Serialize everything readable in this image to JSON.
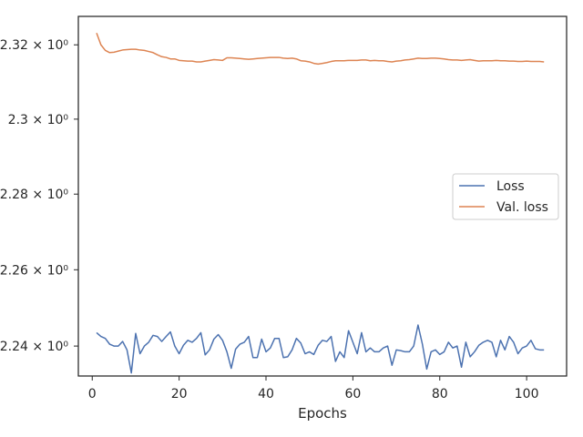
{
  "chart_data": {
    "type": "line",
    "title": "",
    "xlabel": "Epochs",
    "ylabel": "",
    "yscale": "log",
    "xlim": [
      -3.2,
      109.2
    ],
    "ylim": [
      2.2322,
      2.3277
    ],
    "grid": false,
    "legend_position": "center-right",
    "x_ticks": [
      {
        "value": 0,
        "label": "0"
      },
      {
        "value": 20,
        "label": "20"
      },
      {
        "value": 40,
        "label": "40"
      },
      {
        "value": 60,
        "label": "60"
      },
      {
        "value": 80,
        "label": "80"
      },
      {
        "value": 100,
        "label": "100"
      }
    ],
    "y_ticks": [
      {
        "value": 2.24,
        "label": "2.24 × 10⁰"
      },
      {
        "value": 2.26,
        "label": "2.26 × 10⁰"
      },
      {
        "value": 2.28,
        "label": "2.28 × 10⁰"
      },
      {
        "value": 2.3,
        "label": "2.3 × 10⁰"
      },
      {
        "value": 2.32,
        "label": "2.32 × 10⁰"
      }
    ],
    "series": [
      {
        "name": "Loss",
        "color": "#4c72b0",
        "x": [
          1,
          2,
          3,
          4,
          5,
          6,
          7,
          8,
          9,
          10,
          11,
          12,
          13,
          14,
          15,
          16,
          17,
          18,
          19,
          20,
          21,
          22,
          23,
          24,
          25,
          26,
          27,
          28,
          29,
          30,
          31,
          32,
          33,
          34,
          35,
          36,
          37,
          38,
          39,
          40,
          41,
          42,
          43,
          44,
          45,
          46,
          47,
          48,
          49,
          50,
          51,
          52,
          53,
          54,
          55,
          56,
          57,
          58,
          59,
          60,
          61,
          62,
          63,
          64,
          65,
          66,
          67,
          68,
          69,
          70,
          71,
          72,
          73,
          74,
          75,
          76,
          77,
          78,
          79,
          80,
          81,
          82,
          83,
          84,
          85,
          86,
          87,
          88,
          89,
          90,
          91,
          92,
          93,
          94,
          95,
          96,
          97,
          98,
          99,
          100,
          101,
          102,
          103,
          104
        ],
        "values": [
          2.2435,
          2.2425,
          2.242,
          2.2405,
          2.24,
          2.24,
          2.2412,
          2.239,
          2.233,
          2.2433,
          2.238,
          2.24,
          2.241,
          2.2428,
          2.2425,
          2.2412,
          2.2425,
          2.2437,
          2.24,
          2.238,
          2.2402,
          2.2415,
          2.241,
          2.242,
          2.2435,
          2.2377,
          2.239,
          2.2418,
          2.243,
          2.2415,
          2.2385,
          2.2342,
          2.2392,
          2.2405,
          2.241,
          2.2425,
          2.237,
          2.237,
          2.2418,
          2.2385,
          2.2395,
          2.242,
          2.242,
          2.237,
          2.2372,
          2.239,
          2.242,
          2.2408,
          2.238,
          2.2385,
          2.2378,
          2.2402,
          2.2415,
          2.2412,
          2.2425,
          2.236,
          2.2385,
          2.237,
          2.244,
          2.241,
          2.238,
          2.2435,
          2.2385,
          2.2395,
          2.2385,
          2.2385,
          2.2395,
          2.24,
          2.235,
          2.239,
          2.2388,
          2.2385,
          2.2385,
          2.24,
          2.2455,
          2.2405,
          2.234,
          2.2385,
          2.239,
          2.2378,
          2.2385,
          2.241,
          2.2395,
          2.24,
          2.2345,
          2.241,
          2.2372,
          2.2385,
          2.2402,
          2.241,
          2.2415,
          2.241,
          2.2372,
          2.2415,
          2.239,
          2.2425,
          2.241,
          2.238,
          2.2395,
          2.24,
          2.2415,
          2.2393,
          2.239,
          2.239
        ]
      },
      {
        "name": "Val. loss",
        "color": "#dd8452",
        "x": [
          1,
          2,
          3,
          4,
          5,
          6,
          7,
          8,
          9,
          10,
          11,
          12,
          13,
          14,
          15,
          16,
          17,
          18,
          19,
          20,
          21,
          22,
          23,
          24,
          25,
          26,
          27,
          28,
          29,
          30,
          31,
          32,
          33,
          34,
          35,
          36,
          37,
          38,
          39,
          40,
          41,
          42,
          43,
          44,
          45,
          46,
          47,
          48,
          49,
          50,
          51,
          52,
          53,
          54,
          55,
          56,
          57,
          58,
          59,
          60,
          61,
          62,
          63,
          64,
          65,
          66,
          67,
          68,
          69,
          70,
          71,
          72,
          73,
          74,
          75,
          76,
          77,
          78,
          79,
          80,
          81,
          82,
          83,
          84,
          85,
          86,
          87,
          88,
          89,
          90,
          91,
          92,
          93,
          94,
          95,
          96,
          97,
          98,
          99,
          100,
          101,
          102,
          103,
          104
        ],
        "values": [
          2.3232,
          2.32,
          2.3185,
          2.3179,
          2.318,
          2.3183,
          2.3186,
          2.3187,
          2.3188,
          2.3188,
          2.3186,
          2.3185,
          2.3182,
          2.3179,
          2.3173,
          2.3168,
          2.3166,
          2.3162,
          2.3162,
          2.3158,
          2.3157,
          2.3156,
          2.3156,
          2.3154,
          2.3154,
          2.3156,
          2.3158,
          2.316,
          2.3159,
          2.3158,
          2.3165,
          2.3165,
          2.3164,
          2.3163,
          2.3162,
          2.3161,
          2.3162,
          2.3163,
          2.3164,
          2.3165,
          2.3166,
          2.3166,
          2.3166,
          2.3164,
          2.3163,
          2.3164,
          2.3162,
          2.3157,
          2.3156,
          2.3154,
          2.315,
          2.3148,
          2.315,
          2.3152,
          2.3155,
          2.3157,
          2.3157,
          2.3157,
          2.3158,
          2.3158,
          2.3158,
          2.3159,
          2.3159,
          2.3157,
          2.3158,
          2.3157,
          2.3157,
          2.3155,
          2.3154,
          2.3156,
          2.3157,
          2.3159,
          2.316,
          2.3162,
          2.3164,
          2.3163,
          2.3163,
          2.3164,
          2.3164,
          2.3163,
          2.3162,
          2.316,
          2.3159,
          2.3159,
          2.3158,
          2.3159,
          2.316,
          2.3158,
          2.3156,
          2.3157,
          2.3157,
          2.3157,
          2.3158,
          2.3157,
          2.3157,
          2.3156,
          2.3156,
          2.3155,
          2.3155,
          2.3156,
          2.3155,
          2.3155,
          2.3155,
          2.3154
        ]
      }
    ]
  }
}
